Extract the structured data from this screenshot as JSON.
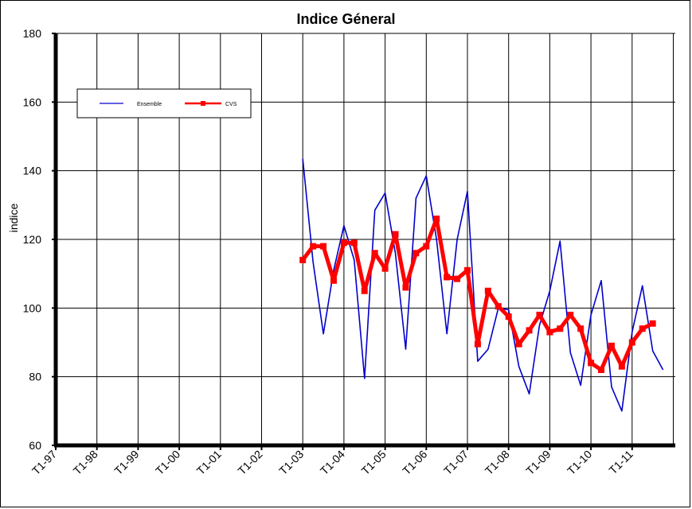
{
  "chart_data": {
    "type": "line",
    "title": "Indice Géneral",
    "xlabel": "",
    "ylabel": "indice",
    "ylim": [
      60,
      180
    ],
    "yticks": [
      60,
      80,
      100,
      120,
      140,
      160,
      180
    ],
    "x_tick_labels": [
      "T1-97",
      "T1-98",
      "T1-99",
      "T1-00",
      "T1-01",
      "T1-02",
      "T1-03",
      "T1-04",
      "T1-05",
      "T1-06",
      "T1-07",
      "T1-08",
      "T1-09",
      "T1-10",
      "T1-11"
    ],
    "grid": true,
    "legend_position": "top-left",
    "series": [
      {
        "name": "Ensemble",
        "color": "#0000cc",
        "marker": "none",
        "start_quarter": 24,
        "values": [
          143.5,
          113.5,
          92.5,
          111.0,
          124.0,
          114.0,
          79.5,
          128.5,
          133.5,
          116.0,
          88.0,
          132.0,
          138.5,
          120.0,
          92.5,
          120.0,
          134.0,
          84.5,
          88.0,
          100.0,
          99.5,
          83.0,
          75.0,
          95.0,
          105.0,
          119.5,
          87.0,
          77.5,
          98.0,
          108.0,
          77.0,
          70.0,
          93.0,
          106.5,
          87.5,
          82.0
        ]
      },
      {
        "name": "CVS",
        "color": "#ff0000",
        "marker": "square",
        "start_quarter": 24,
        "values": [
          114.0,
          118.0,
          118.0,
          108.0,
          119.0,
          119.0,
          105.0,
          116.0,
          111.5,
          121.5,
          106.0,
          116.0,
          118.0,
          126.0,
          109.0,
          108.5,
          111.0,
          89.5,
          105.0,
          100.5,
          97.5,
          89.5,
          93.5,
          98.0,
          93.0,
          94.0,
          98.0,
          94.0,
          84.0,
          82.0,
          89.0,
          83.0,
          90.0,
          94.0,
          95.5
        ]
      }
    ]
  }
}
